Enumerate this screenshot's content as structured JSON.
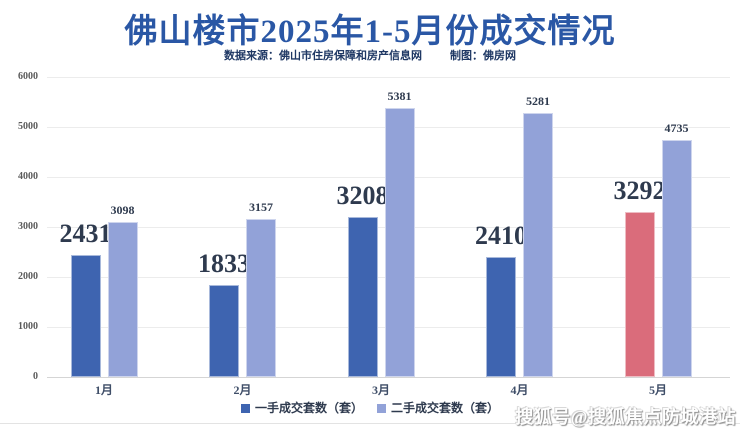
{
  "header": {
    "title": "佛山楼市2025年1-5月份成交情况",
    "source": "数据来源：佛山市住房保障和房产信息网",
    "credit": "制图：佛房网"
  },
  "chart_data": {
    "type": "bar",
    "title": "佛山楼市2025年1-5月份成交情况",
    "categories": [
      "1月",
      "2月",
      "3月",
      "4月",
      "5月"
    ],
    "series": [
      {
        "name": "一手成交套数（套）",
        "values": [
          2431,
          1833,
          3208,
          2410,
          3292
        ],
        "color": "#3E64B0",
        "highlight_index": 4,
        "highlight_color": "#DA6C7B"
      },
      {
        "name": "二手成交套数（套）",
        "values": [
          3098,
          3157,
          5381,
          5281,
          4735
        ],
        "color": "#92A2D8"
      }
    ],
    "xlabel": "",
    "ylabel": "",
    "ylim": [
      0,
      6000
    ],
    "yticks": [
      0,
      1000,
      2000,
      3000,
      4000,
      5000,
      6000
    ],
    "grid": true,
    "legend_position": "bottom"
  },
  "watermark": "搜狐号@搜狐焦点防城港站",
  "colors": {
    "title": "#2a57a5",
    "primary_bar": "#3E64B0",
    "secondary_bar": "#92A2D8",
    "highlight_bar": "#DA6C7B",
    "gridline": "#ececec"
  }
}
